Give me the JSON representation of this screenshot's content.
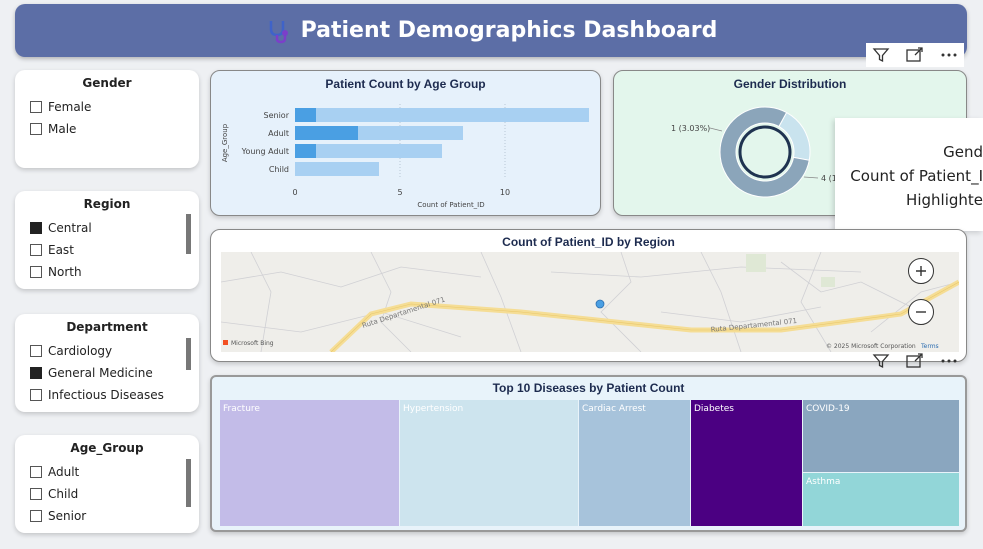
{
  "header": {
    "title": "Patient Demographics Dashboard"
  },
  "slicers": {
    "gender": {
      "title": "Gender",
      "items": [
        {
          "label": "Female",
          "checked": false
        },
        {
          "label": "Male",
          "checked": false
        }
      ]
    },
    "region": {
      "title": "Region",
      "items": [
        {
          "label": "Central",
          "checked": true
        },
        {
          "label": "East",
          "checked": false
        },
        {
          "label": "North",
          "checked": false
        }
      ]
    },
    "department": {
      "title": "Department",
      "items": [
        {
          "label": "Cardiology",
          "checked": false
        },
        {
          "label": "General Medicine",
          "checked": true
        },
        {
          "label": "Infectious Diseases",
          "checked": false
        }
      ]
    },
    "age_group": {
      "title": "Age_Group",
      "items": [
        {
          "label": "Adult",
          "checked": false
        },
        {
          "label": "Child",
          "checked": false
        },
        {
          "label": "Senior",
          "checked": false
        }
      ]
    }
  },
  "age_chart": {
    "title": "Patient Count by Age Group",
    "ylabel": "Age_Group",
    "xlabel": "Count of Patient_ID",
    "ticks": [
      "0",
      "5",
      "10"
    ],
    "colors": {
      "highlight": "#4a9fe3",
      "total": "#a8d0f2"
    }
  },
  "gender_chart": {
    "title": "Gender Distribution",
    "label_left": "1 (3.03%)",
    "label_right": "4 (1"
  },
  "tooltip": {
    "line1": "Gend",
    "line2": "Count of Patient_I",
    "line3": "Highlighte"
  },
  "map": {
    "title": "Count of Patient_ID by Region",
    "road1": "Ruta Departamental 071",
    "road2": "Ruta Departamental 071",
    "attribution_left": "Microsoft Bing",
    "attribution_right": "© 2025 Microsoft Corporation",
    "terms": "Terms"
  },
  "treemap": {
    "title": "Top 10 Diseases by Patient Count",
    "cells": [
      {
        "label": "Fracture",
        "color": "#c3bce8"
      },
      {
        "label": "Hypertension",
        "color": "#cde4ee"
      },
      {
        "label": "Cardiac Arrest",
        "color": "#a7c3db"
      },
      {
        "label": "Diabetes",
        "color": "#4b0082"
      },
      {
        "label": "COVID-19",
        "color": "#8aa6bf"
      },
      {
        "label": "Asthma",
        "color": "#92d6d8"
      }
    ]
  },
  "chart_data": [
    {
      "type": "bar",
      "orientation": "horizontal",
      "title": "Patient Count by Age Group",
      "xlabel": "Count of Patient_ID",
      "ylabel": "Age_Group",
      "categories": [
        "Senior",
        "Adult",
        "Young Adult",
        "Child"
      ],
      "series": [
        {
          "name": "",
          "values": [
            14,
            8,
            7,
            4
          ]
        },
        {
          "name": "Highlighted",
          "values": [
            1,
            3,
            1,
            0
          ]
        }
      ],
      "xlim": [
        0,
        14
      ]
    },
    {
      "type": "pie",
      "title": "Gender Distribution",
      "categories": [
        "",
        ""
      ],
      "values": [
        1,
        4
      ]
    }
  ]
}
